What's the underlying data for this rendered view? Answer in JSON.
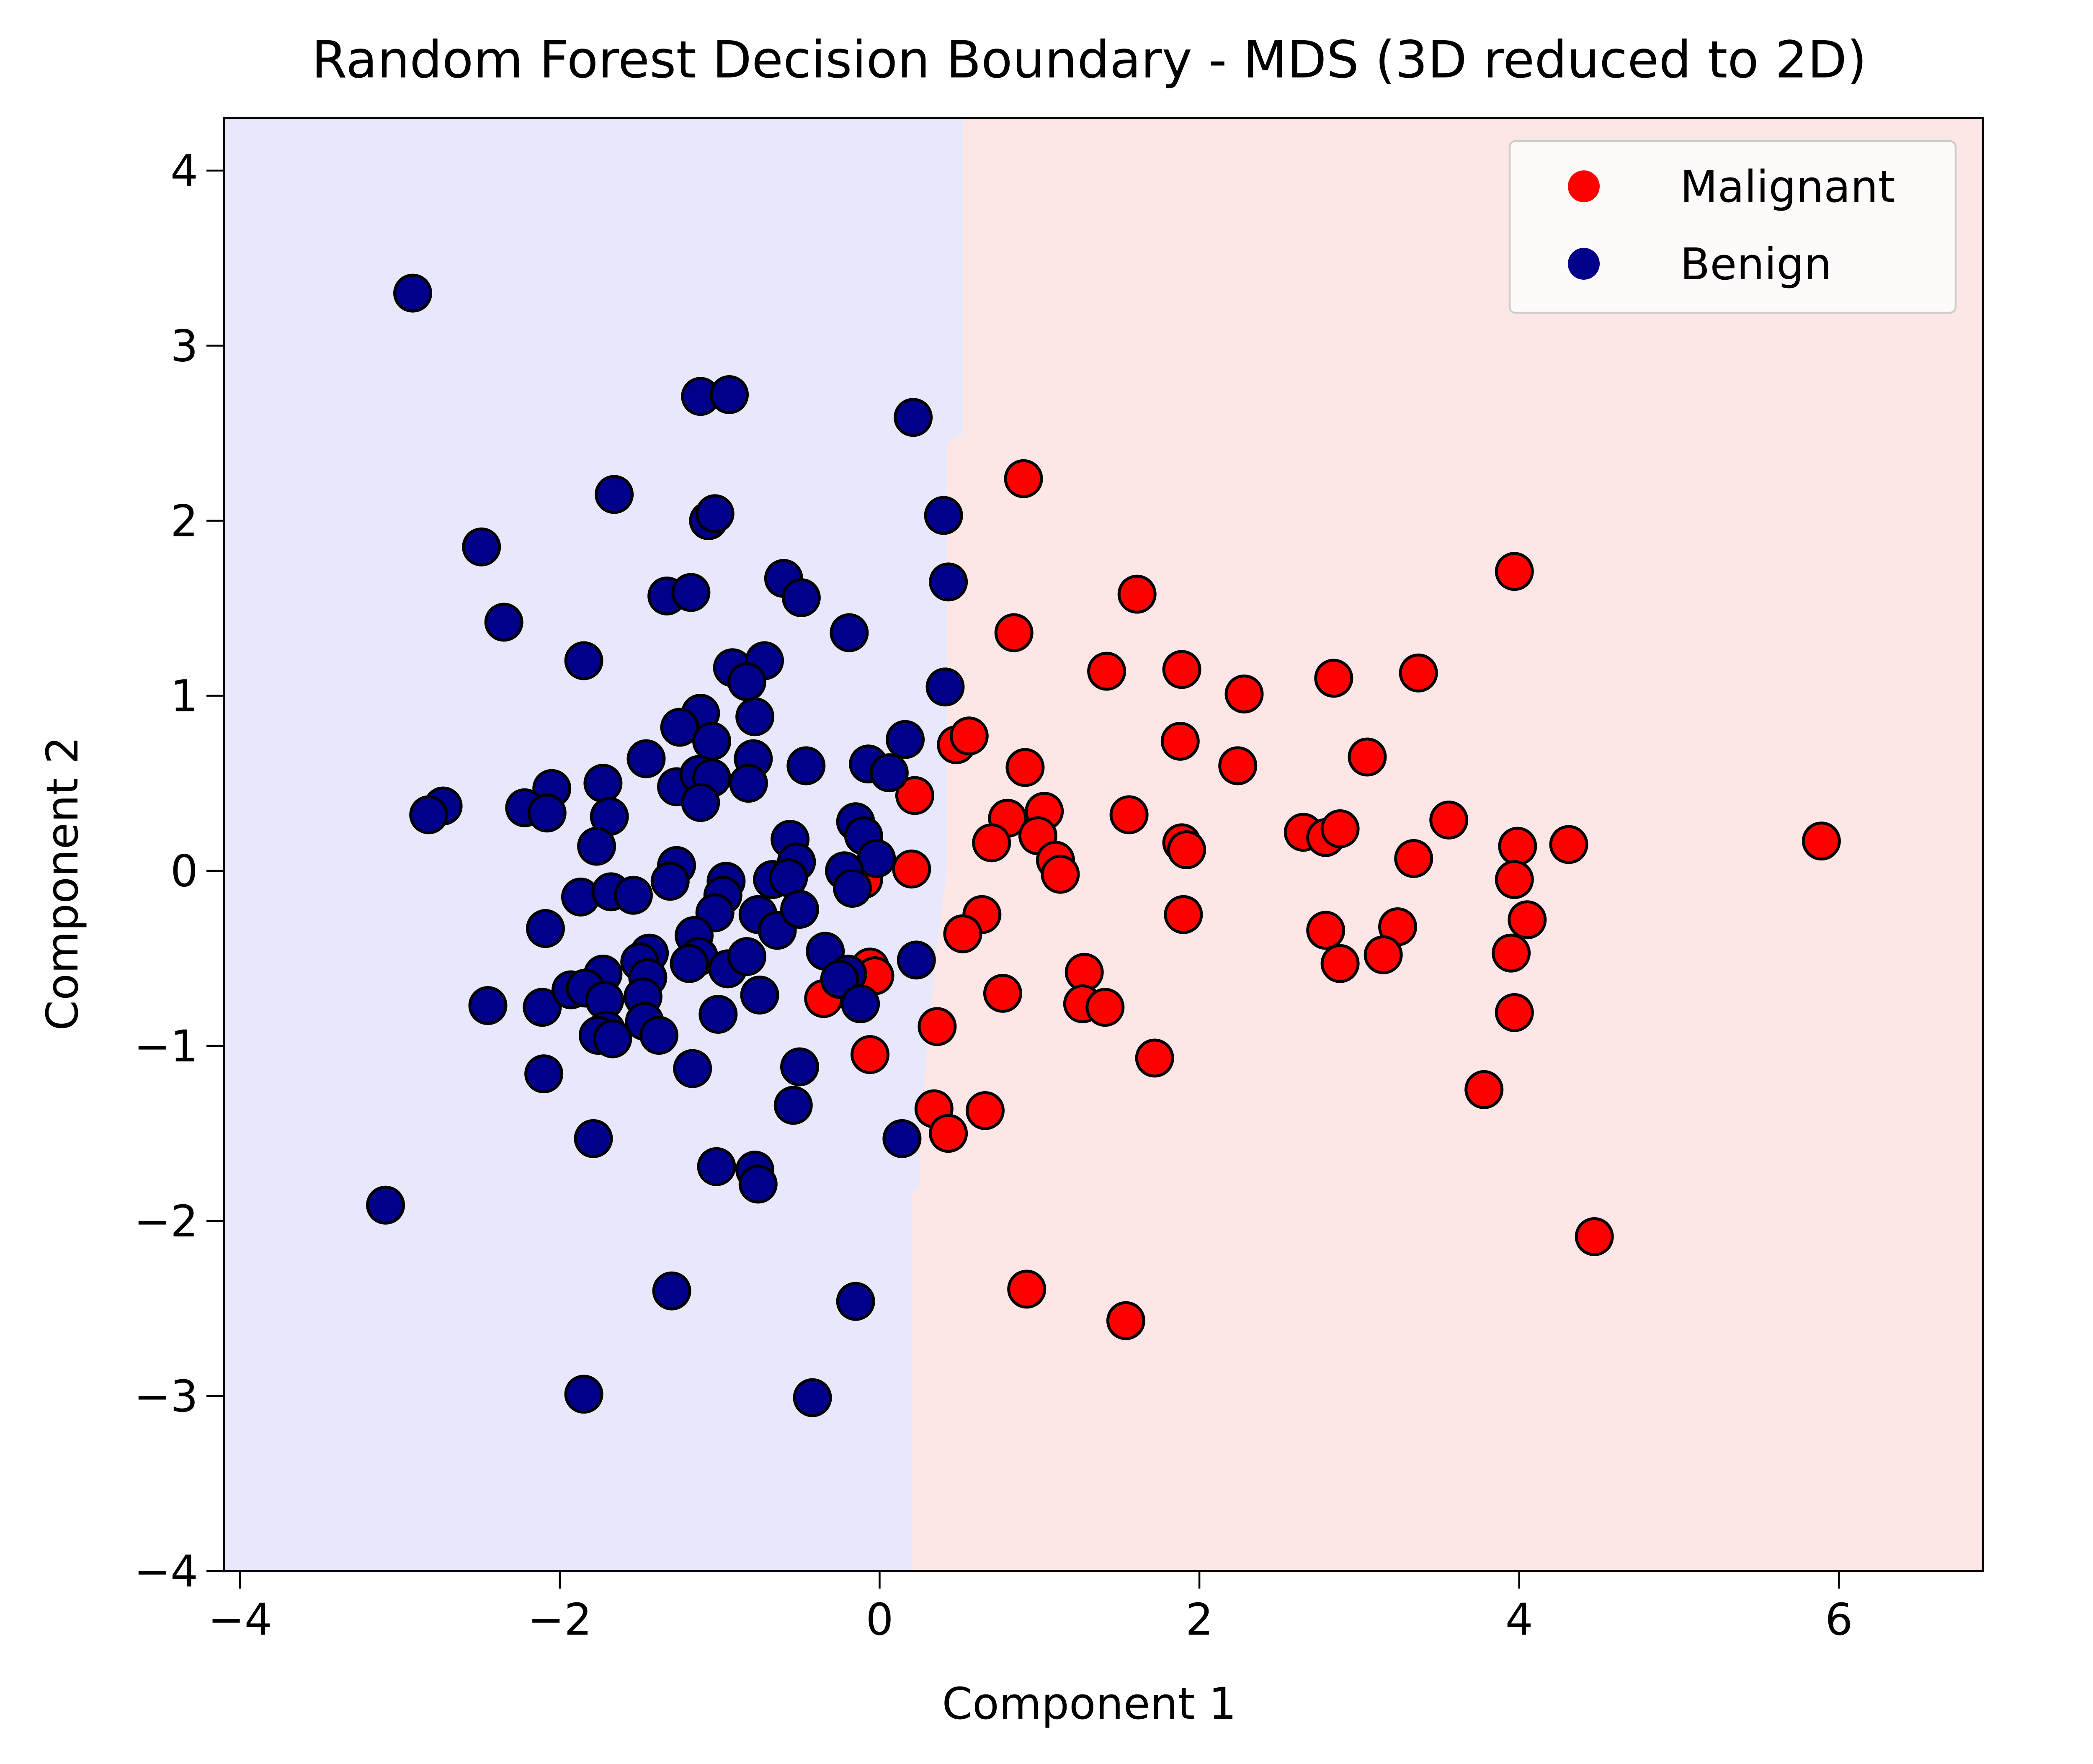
{
  "chart_data": {
    "type": "scatter",
    "title": "Random Forest Decision Boundary - MDS (3D reduced to 2D)",
    "xlabel": "Component 1",
    "ylabel": "Component 2",
    "xlim": [
      -4.1,
      6.9
    ],
    "ylim": [
      -4.0,
      4.3
    ],
    "xticks": [
      -4,
      -2,
      0,
      2,
      4,
      6
    ],
    "yticks": [
      -4,
      -3,
      -2,
      -1,
      0,
      1,
      2,
      3,
      4
    ],
    "xtick_labels": [
      "−4",
      "−2",
      "0",
      "2",
      "4",
      "6"
    ],
    "ytick_labels": [
      "−4",
      "−3",
      "−2",
      "−1",
      "0",
      "1",
      "2",
      "3",
      "4"
    ],
    "grid": false,
    "legend_position": "top-right",
    "colors": {
      "malignant": "#ff0000",
      "benign": "#00008b",
      "region_benign": "#e8e8fc",
      "region_malignant": "#fde6e6",
      "marker_edge": "#000000"
    },
    "decision_boundary": {
      "left_class": "Benign",
      "right_class": "Malignant",
      "boundary": [
        [
          0.52,
          4.3
        ],
        [
          0.52,
          2.5
        ],
        [
          0.42,
          2.45
        ],
        [
          0.42,
          0.0
        ],
        [
          0.35,
          -0.5
        ],
        [
          0.25,
          -1.5
        ],
        [
          0.25,
          -1.8
        ],
        [
          0.2,
          -1.85
        ],
        [
          0.2,
          -4.0
        ]
      ]
    },
    "series": [
      {
        "name": "Malignant",
        "color": "#ff0000",
        "points": [
          [
            0.9,
            2.24
          ],
          [
            3.97,
            1.71
          ],
          [
            1.61,
            1.58
          ],
          [
            0.84,
            1.36
          ],
          [
            1.42,
            1.14
          ],
          [
            1.89,
            1.15
          ],
          [
            2.28,
            1.01
          ],
          [
            2.84,
            1.1
          ],
          [
            3.37,
            1.13
          ],
          [
            0.48,
            0.72
          ],
          [
            0.56,
            0.77
          ],
          [
            1.88,
            0.74
          ],
          [
            0.91,
            0.59
          ],
          [
            2.24,
            0.6
          ],
          [
            3.05,
            0.65
          ],
          [
            0.22,
            0.43
          ],
          [
            0.8,
            0.3
          ],
          [
            1.03,
            0.34
          ],
          [
            1.56,
            0.32
          ],
          [
            3.56,
            0.29
          ],
          [
            0.7,
            0.16
          ],
          [
            0.99,
            0.2
          ],
          [
            1.89,
            0.16
          ],
          [
            1.92,
            0.12
          ],
          [
            2.65,
            0.22
          ],
          [
            2.79,
            0.19
          ],
          [
            2.88,
            0.24
          ],
          [
            3.34,
            0.07
          ],
          [
            3.99,
            0.14
          ],
          [
            4.31,
            0.15
          ],
          [
            5.89,
            0.17
          ],
          [
            1.1,
            0.06
          ],
          [
            1.13,
            -0.02
          ],
          [
            0.2,
            0.01
          ],
          [
            3.97,
            -0.05
          ],
          [
            0.64,
            -0.25
          ],
          [
            0.52,
            -0.36
          ],
          [
            1.9,
            -0.25
          ],
          [
            2.79,
            -0.34
          ],
          [
            3.24,
            -0.32
          ],
          [
            4.05,
            -0.28
          ],
          [
            -0.1,
            -0.05
          ],
          [
            2.88,
            -0.53
          ],
          [
            3.15,
            -0.48
          ],
          [
            3.95,
            -0.47
          ],
          [
            -0.06,
            -0.55
          ],
          [
            -0.03,
            -0.6
          ],
          [
            -0.35,
            -0.73
          ],
          [
            0.77,
            -0.7
          ],
          [
            1.28,
            -0.58
          ],
          [
            1.27,
            -0.76
          ],
          [
            1.41,
            -0.78
          ],
          [
            3.97,
            -0.81
          ],
          [
            0.36,
            -0.89
          ],
          [
            -0.06,
            -1.05
          ],
          [
            1.72,
            -1.07
          ],
          [
            3.78,
            -1.25
          ],
          [
            0.34,
            -1.36
          ],
          [
            0.66,
            -1.37
          ],
          [
            0.43,
            -1.5
          ],
          [
            4.47,
            -2.09
          ],
          [
            0.92,
            -2.39
          ],
          [
            1.54,
            -2.57
          ]
        ]
      },
      {
        "name": "Benign",
        "color": "#00008b",
        "points": [
          [
            -2.92,
            3.3
          ],
          [
            -1.12,
            2.71
          ],
          [
            -0.94,
            2.72
          ],
          [
            0.21,
            2.59
          ],
          [
            -1.66,
            2.15
          ],
          [
            -1.07,
            2.0
          ],
          [
            -1.03,
            2.04
          ],
          [
            0.4,
            2.03
          ],
          [
            -2.49,
            1.85
          ],
          [
            0.43,
            1.65
          ],
          [
            -0.6,
            1.67
          ],
          [
            -1.33,
            1.57
          ],
          [
            -1.18,
            1.59
          ],
          [
            -0.49,
            1.56
          ],
          [
            -2.35,
            1.42
          ],
          [
            -0.19,
            1.36
          ],
          [
            -1.85,
            1.2
          ],
          [
            -0.92,
            1.16
          ],
          [
            -0.72,
            1.2
          ],
          [
            -0.83,
            1.08
          ],
          [
            0.41,
            1.05
          ],
          [
            -1.12,
            0.9
          ],
          [
            -1.25,
            0.82
          ],
          [
            -0.78,
            0.88
          ],
          [
            -1.05,
            0.74
          ],
          [
            0.16,
            0.75
          ],
          [
            -1.46,
            0.64
          ],
          [
            -0.79,
            0.64
          ],
          [
            -0.46,
            0.6
          ],
          [
            -0.07,
            0.61
          ],
          [
            0.06,
            0.56
          ],
          [
            -1.27,
            0.48
          ],
          [
            -1.13,
            0.55
          ],
          [
            -1.05,
            0.53
          ],
          [
            -0.82,
            0.5
          ],
          [
            -2.05,
            0.47
          ],
          [
            -1.73,
            0.5
          ],
          [
            -1.12,
            0.39
          ],
          [
            -2.73,
            0.37
          ],
          [
            -2.82,
            0.32
          ],
          [
            -2.22,
            0.36
          ],
          [
            -2.08,
            0.33
          ],
          [
            -1.69,
            0.31
          ],
          [
            -0.15,
            0.28
          ],
          [
            -0.1,
            0.2
          ],
          [
            -1.77,
            0.14
          ],
          [
            -0.56,
            0.18
          ],
          [
            -0.52,
            0.05
          ],
          [
            -1.27,
            0.03
          ],
          [
            -0.02,
            0.07
          ],
          [
            -0.96,
            -0.06
          ],
          [
            -0.67,
            -0.05
          ],
          [
            -0.57,
            -0.04
          ],
          [
            -0.22,
            0.0
          ],
          [
            -1.31,
            -0.06
          ],
          [
            -1.87,
            -0.15
          ],
          [
            -1.68,
            -0.12
          ],
          [
            -1.54,
            -0.14
          ],
          [
            -0.98,
            -0.14
          ],
          [
            -0.17,
            -0.1
          ],
          [
            -1.03,
            -0.24
          ],
          [
            -0.76,
            -0.25
          ],
          [
            -0.64,
            -0.34
          ],
          [
            -0.5,
            -0.22
          ],
          [
            -2.09,
            -0.33
          ],
          [
            -1.16,
            -0.37
          ],
          [
            -1.44,
            -0.47
          ],
          [
            -1.5,
            -0.52
          ],
          [
            -1.13,
            -0.49
          ],
          [
            -0.34,
            -0.46
          ],
          [
            0.23,
            -0.51
          ],
          [
            -1.73,
            -0.59
          ],
          [
            -1.45,
            -0.61
          ],
          [
            -1.19,
            -0.53
          ],
          [
            -0.95,
            -0.56
          ],
          [
            -0.83,
            -0.49
          ],
          [
            -0.2,
            -0.59
          ],
          [
            -2.45,
            -0.77
          ],
          [
            -2.11,
            -0.78
          ],
          [
            -1.93,
            -0.68
          ],
          [
            -1.84,
            -0.67
          ],
          [
            -1.72,
            -0.74
          ],
          [
            -1.48,
            -0.72
          ],
          [
            -1.01,
            -0.82
          ],
          [
            -0.75,
            -0.71
          ],
          [
            -0.25,
            -0.62
          ],
          [
            -0.12,
            -0.76
          ],
          [
            -1.47,
            -0.86
          ],
          [
            -1.38,
            -0.94
          ],
          [
            -1.71,
            -0.91
          ],
          [
            -1.76,
            -0.94
          ],
          [
            -1.67,
            -0.96
          ],
          [
            -2.1,
            -1.16
          ],
          [
            -1.17,
            -1.13
          ],
          [
            -0.5,
            -1.12
          ],
          [
            -0.54,
            -1.34
          ],
          [
            -1.79,
            -1.53
          ],
          [
            0.14,
            -1.53
          ],
          [
            -1.02,
            -1.69
          ],
          [
            -0.78,
            -1.71
          ],
          [
            -0.76,
            -1.79
          ],
          [
            -3.09,
            -1.91
          ],
          [
            -1.3,
            -2.4
          ],
          [
            -0.15,
            -2.46
          ],
          [
            -1.85,
            -2.99
          ],
          [
            -0.42,
            -3.01
          ]
        ]
      }
    ]
  }
}
